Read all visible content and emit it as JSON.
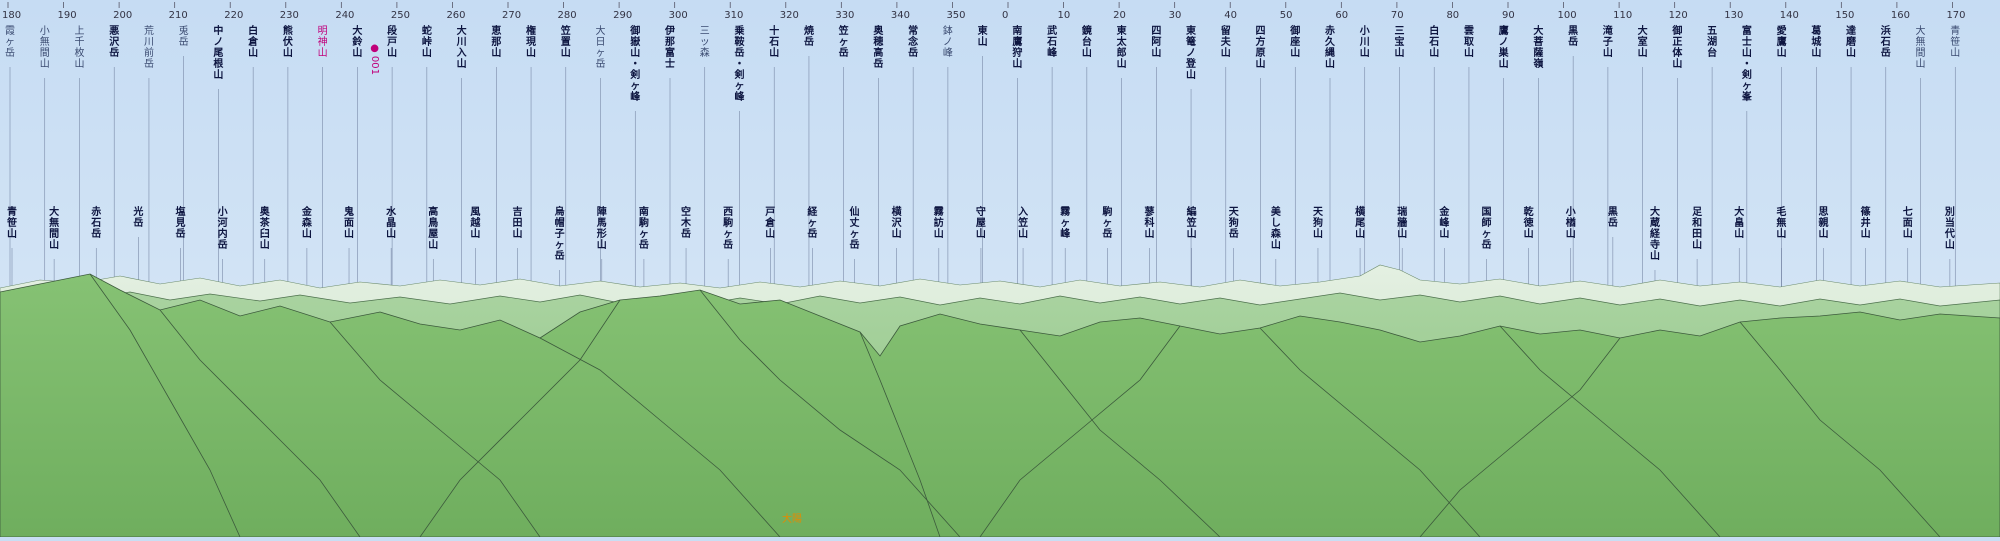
{
  "bearing_ticks": [
    "180",
    "190",
    "200",
    "210",
    "220",
    "230",
    "240",
    "250",
    "260",
    "270",
    "280",
    "290",
    "300",
    "310",
    "320",
    "330",
    "340",
    "350",
    "0",
    "10",
    "20",
    "30",
    "40",
    "50",
    "60",
    "70",
    "80",
    "90",
    "100",
    "110",
    "120",
    "130",
    "140",
    "150",
    "160",
    "170"
  ],
  "upper_labels": [
    {
      "text": "霞ヶ岳",
      "style": "sub"
    },
    {
      "text": "小無間山",
      "style": "sub"
    },
    {
      "text": "上千枚山",
      "style": "sub"
    },
    {
      "text": "悪沢岳",
      "style": "major"
    },
    {
      "text": "荒川前岳",
      "style": "sub"
    },
    {
      "text": "兎岳",
      "style": "sub"
    },
    {
      "text": "中ノ尾根山",
      "style": "major"
    },
    {
      "text": "白倉山",
      "style": "major"
    },
    {
      "text": "熊伏山",
      "style": "major"
    },
    {
      "text": "明神山",
      "style": "mark"
    },
    {
      "text": "大鈴山",
      "style": "major"
    },
    {
      "text": "段戸山",
      "style": "major"
    },
    {
      "text": "蛇峠山",
      "style": "major"
    },
    {
      "text": "大川入山",
      "style": "major"
    },
    {
      "text": "恵那山",
      "style": "major"
    },
    {
      "text": "権現山",
      "style": "major"
    },
    {
      "text": "笠置山",
      "style": "major"
    },
    {
      "text": "大日ヶ岳",
      "style": "sub"
    },
    {
      "text": "御嶽山・剣ヶ峰",
      "style": "major"
    },
    {
      "text": "伊那富士",
      "style": "major"
    },
    {
      "text": "三ッ森",
      "style": "sub"
    },
    {
      "text": "乗鞍岳・剣ヶ峰",
      "style": "major"
    },
    {
      "text": "十石山",
      "style": "major"
    },
    {
      "text": "焼岳",
      "style": "major"
    },
    {
      "text": "笠ヶ岳",
      "style": "major"
    },
    {
      "text": "奥穂高岳",
      "style": "major"
    },
    {
      "text": "常念岳",
      "style": "major"
    },
    {
      "text": "鉢ノ峰",
      "style": "sub"
    },
    {
      "text": "東山",
      "style": "major"
    },
    {
      "text": "南鷹狩山",
      "style": "major"
    },
    {
      "text": "武石峰",
      "style": "major"
    },
    {
      "text": "鏡台山",
      "style": "major"
    },
    {
      "text": "東太郎山",
      "style": "major"
    },
    {
      "text": "四阿山",
      "style": "major"
    },
    {
      "text": "東篭ノ登山",
      "style": "major"
    },
    {
      "text": "留夫山",
      "style": "major"
    },
    {
      "text": "四方原山",
      "style": "major"
    },
    {
      "text": "御座山",
      "style": "major"
    },
    {
      "text": "赤久縄山",
      "style": "major"
    },
    {
      "text": "小川山",
      "style": "major"
    },
    {
      "text": "三宝山",
      "style": "major"
    },
    {
      "text": "白石山",
      "style": "major"
    },
    {
      "text": "雲取山",
      "style": "major"
    },
    {
      "text": "鷹ノ巣山",
      "style": "major"
    },
    {
      "text": "大菩薩嶺",
      "style": "major"
    },
    {
      "text": "黒岳",
      "style": "major"
    },
    {
      "text": "滝子山",
      "style": "major"
    },
    {
      "text": "大室山",
      "style": "major"
    },
    {
      "text": "御正体山",
      "style": "major"
    },
    {
      "text": "五湖台",
      "style": "major"
    },
    {
      "text": "富士山・剣ヶ峯",
      "style": "major"
    },
    {
      "text": "愛鷹山",
      "style": "major"
    },
    {
      "text": "葛城山",
      "style": "major"
    },
    {
      "text": "達磨山",
      "style": "major"
    },
    {
      "text": "浜石岳",
      "style": "major"
    },
    {
      "text": "大無間山",
      "style": "sub"
    },
    {
      "text": "青笹山",
      "style": "sub"
    }
  ],
  "lower_labels": [
    {
      "text": "青笹山",
      "style": "major"
    },
    {
      "text": "大無間山",
      "style": "major"
    },
    {
      "text": "赤石岳",
      "style": "major"
    },
    {
      "text": "光岳",
      "style": "major"
    },
    {
      "text": "塩見岳",
      "style": "major"
    },
    {
      "text": "小河内岳",
      "style": "major"
    },
    {
      "text": "奥茶臼山",
      "style": "major"
    },
    {
      "text": "金森山",
      "style": "major"
    },
    {
      "text": "鬼面山",
      "style": "major"
    },
    {
      "text": "水晶山",
      "style": "major"
    },
    {
      "text": "高鳥屋山",
      "style": "major"
    },
    {
      "text": "風越山",
      "style": "major"
    },
    {
      "text": "吉田山",
      "style": "major"
    },
    {
      "text": "烏帽子ヶ岳",
      "style": "major"
    },
    {
      "text": "陣馬形山",
      "style": "major"
    },
    {
      "text": "南駒ヶ岳",
      "style": "major"
    },
    {
      "text": "空木岳",
      "style": "major"
    },
    {
      "text": "西駒ヶ岳",
      "style": "major"
    },
    {
      "text": "戸倉山",
      "style": "major"
    },
    {
      "text": "経ヶ岳",
      "style": "major"
    },
    {
      "text": "仙丈ヶ岳",
      "style": "major"
    },
    {
      "text": "横沢山",
      "style": "major"
    },
    {
      "text": "霧訪山",
      "style": "major"
    },
    {
      "text": "守屋山",
      "style": "major"
    },
    {
      "text": "入笠山",
      "style": "major"
    },
    {
      "text": "霧ヶ峰",
      "style": "major"
    },
    {
      "text": "駒ヶ岳",
      "style": "major"
    },
    {
      "text": "蓼科山",
      "style": "major"
    },
    {
      "text": "編笠山",
      "style": "major"
    },
    {
      "text": "天狗岳",
      "style": "major"
    },
    {
      "text": "美し森山",
      "style": "major"
    },
    {
      "text": "天狗山",
      "style": "major"
    },
    {
      "text": "横尾山",
      "style": "major"
    },
    {
      "text": "瑞牆山",
      "style": "major"
    },
    {
      "text": "金峰山",
      "style": "major"
    },
    {
      "text": "国師ヶ岳",
      "style": "major"
    },
    {
      "text": "乾徳山",
      "style": "major"
    },
    {
      "text": "小楢山",
      "style": "major"
    },
    {
      "text": "黒岳",
      "style": "major"
    },
    {
      "text": "大蔵経寺山",
      "style": "major"
    },
    {
      "text": "足和田山",
      "style": "major"
    },
    {
      "text": "大畠山",
      "style": "major"
    },
    {
      "text": "毛無山",
      "style": "major"
    },
    {
      "text": "思親山",
      "style": "major"
    },
    {
      "text": "篠井山",
      "style": "major"
    },
    {
      "text": "七面山",
      "style": "major"
    },
    {
      "text": "別当代山",
      "style": "major"
    }
  ],
  "marker": {
    "text": "● 001"
  },
  "bottom_note": "大陽"
}
